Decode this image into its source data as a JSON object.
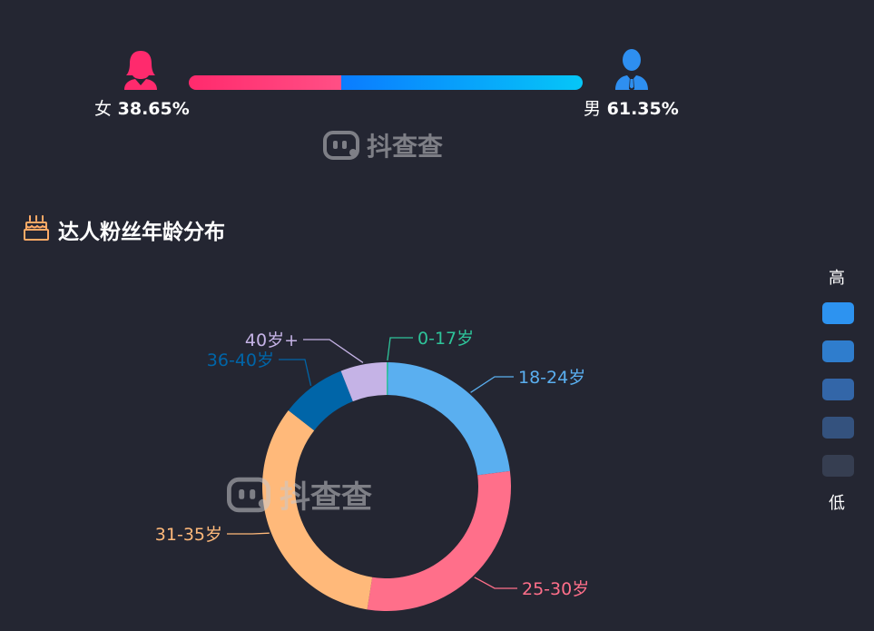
{
  "gender": {
    "female": {
      "name": "女",
      "percent": "38.65%",
      "value": 38.65,
      "color": "#ff2a6d",
      "icon": "female-user-icon"
    },
    "male": {
      "name": "男",
      "percent": "61.35%",
      "value": 61.35,
      "color": "#2e8ff0",
      "icon": "male-user-icon"
    }
  },
  "watermark": {
    "text": "抖查查",
    "icon": "robot-face-icon"
  },
  "section": {
    "title": "达人粉丝年龄分布",
    "icon": "birthday-cake-icon"
  },
  "legend": {
    "high_label": "高",
    "low_label": "低",
    "colors": [
      "#2d93f0",
      "#2f7dcd",
      "#3366a8",
      "#34527e",
      "#363e51"
    ]
  },
  "chart_data": {
    "type": "pie",
    "title": "",
    "categories": [
      "0-17岁",
      "18-24岁",
      "25-30岁",
      "31-35岁",
      "36-40岁",
      "40岁+"
    ],
    "values": [
      0.2,
      22.8,
      29.5,
      33.0,
      8.5,
      6.0
    ],
    "colors": [
      "#2ec49a",
      "#5aaff0",
      "#ff6f8a",
      "#ffb97a",
      "#0065a8",
      "#c5b3e6"
    ]
  }
}
